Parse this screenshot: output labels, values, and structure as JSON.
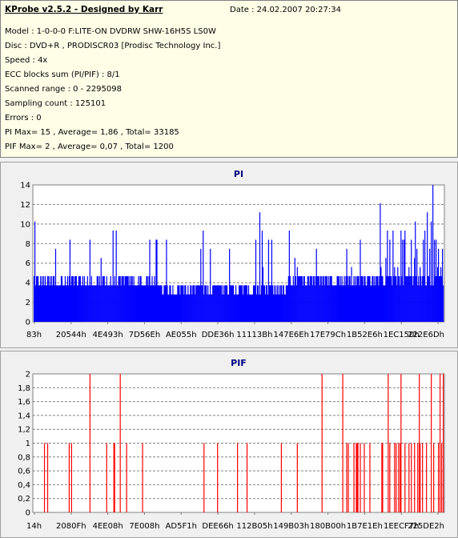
{
  "info": {
    "title": "KProbe v2.5.2 - Designed by Karr",
    "date": "Date : 24.02.2007 20:27:34",
    "lines": [
      "Model : 1-0-0-0 F:LITE-ON DVDRW SHW-16H5S  LS0W",
      "Disc : DVD+R , PRODISCR03 [Prodisc Technology Inc.]",
      "Speed : 4x",
      "ECC blocks sum (PI/PIF) : 8/1",
      "Scanned range : 0 - 2295098",
      "Sampling count : 125101",
      "Errors : 0",
      "PI Max= 15 , Average= 1,86 , Total= 33185",
      "PIF Max= 2 , Average= 0,07 , Total= 1200"
    ]
  },
  "chart_data": [
    {
      "type": "bar",
      "title": "PI",
      "color": "#0000ff",
      "ylim": [
        0,
        15
      ],
      "yticks": [
        "0",
        "2",
        "4",
        "6",
        "8",
        "10",
        "12",
        "14"
      ],
      "xticks": [
        "83h",
        "20544h",
        "4E493h",
        "7D56Eh",
        "AE055h",
        "DDE36h",
        "11113Bh",
        "147E6Eh",
        "17E79Ch",
        "1B52E6h",
        "1EC150h",
        "222E6Dh"
      ],
      "max": 15,
      "average": 1.86,
      "grid": true
    },
    {
      "type": "bar",
      "title": "PIF",
      "color": "#ff0000",
      "ylim": [
        0,
        2
      ],
      "yticks": [
        "0",
        "0,2",
        "0,4",
        "0,6",
        "0,8",
        "1",
        "1,2",
        "1,4",
        "1,6",
        "1,8",
        "2"
      ],
      "xticks": [
        "14h",
        "2080Fh",
        "4EE08h",
        "7E008h",
        "AD5F1h",
        "DEE66h",
        "112B05h",
        "149B03h",
        "180B00h",
        "1B7E1Eh",
        "1EECF7h",
        "225DE2h"
      ],
      "max": 2,
      "average": 0.07,
      "grid": true
    }
  ]
}
